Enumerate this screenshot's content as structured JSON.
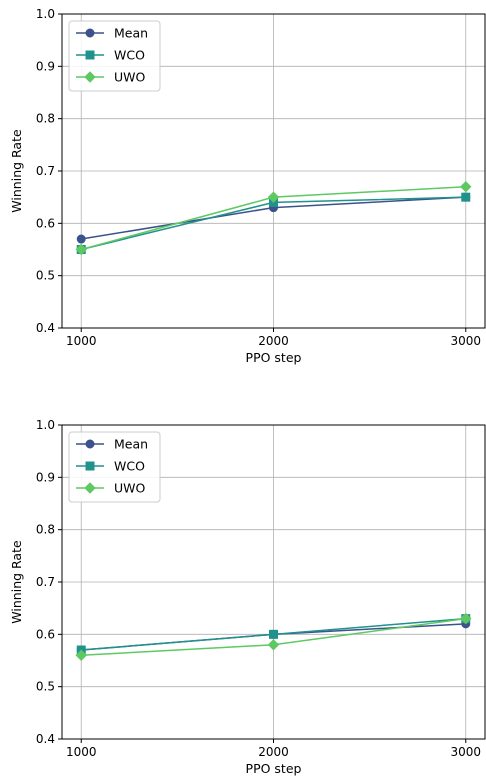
{
  "colors": {
    "Mean": "#3b528b",
    "WCO": "#21918c",
    "UWO": "#5ec962",
    "grid": "#b0b0b0",
    "axis": "#000000"
  },
  "chart_data": [
    {
      "type": "line",
      "xlabel": "PPO step",
      "ylabel": "Winning Rate",
      "x": [
        1000,
        2000,
        3000
      ],
      "xticks": [
        "1000",
        "2000",
        "3000"
      ],
      "yticks": [
        "0.4",
        "0.5",
        "0.6",
        "0.7",
        "0.8",
        "0.9",
        "1.0"
      ],
      "ylim": [
        0.4,
        1.0
      ],
      "grid": true,
      "legend_position": "top-left",
      "series": [
        {
          "name": "Mean",
          "marker": "circle",
          "values": [
            0.57,
            0.63,
            0.65
          ]
        },
        {
          "name": "WCO",
          "marker": "square",
          "values": [
            0.55,
            0.64,
            0.65
          ]
        },
        {
          "name": "UWO",
          "marker": "diamond",
          "values": [
            0.55,
            0.65,
            0.67
          ]
        }
      ]
    },
    {
      "type": "line",
      "xlabel": "PPO step",
      "ylabel": "Winning Rate",
      "x": [
        1000,
        2000,
        3000
      ],
      "xticks": [
        "1000",
        "2000",
        "3000"
      ],
      "yticks": [
        "0.4",
        "0.5",
        "0.6",
        "0.7",
        "0.8",
        "0.9",
        "1.0"
      ],
      "ylim": [
        0.4,
        1.0
      ],
      "grid": true,
      "legend_position": "top-left",
      "series": [
        {
          "name": "Mean",
          "marker": "circle",
          "values": [
            0.57,
            0.6,
            0.62
          ]
        },
        {
          "name": "WCO",
          "marker": "square",
          "values": [
            0.57,
            0.6,
            0.63
          ]
        },
        {
          "name": "UWO",
          "marker": "diamond",
          "values": [
            0.56,
            0.58,
            0.63
          ]
        }
      ]
    }
  ]
}
